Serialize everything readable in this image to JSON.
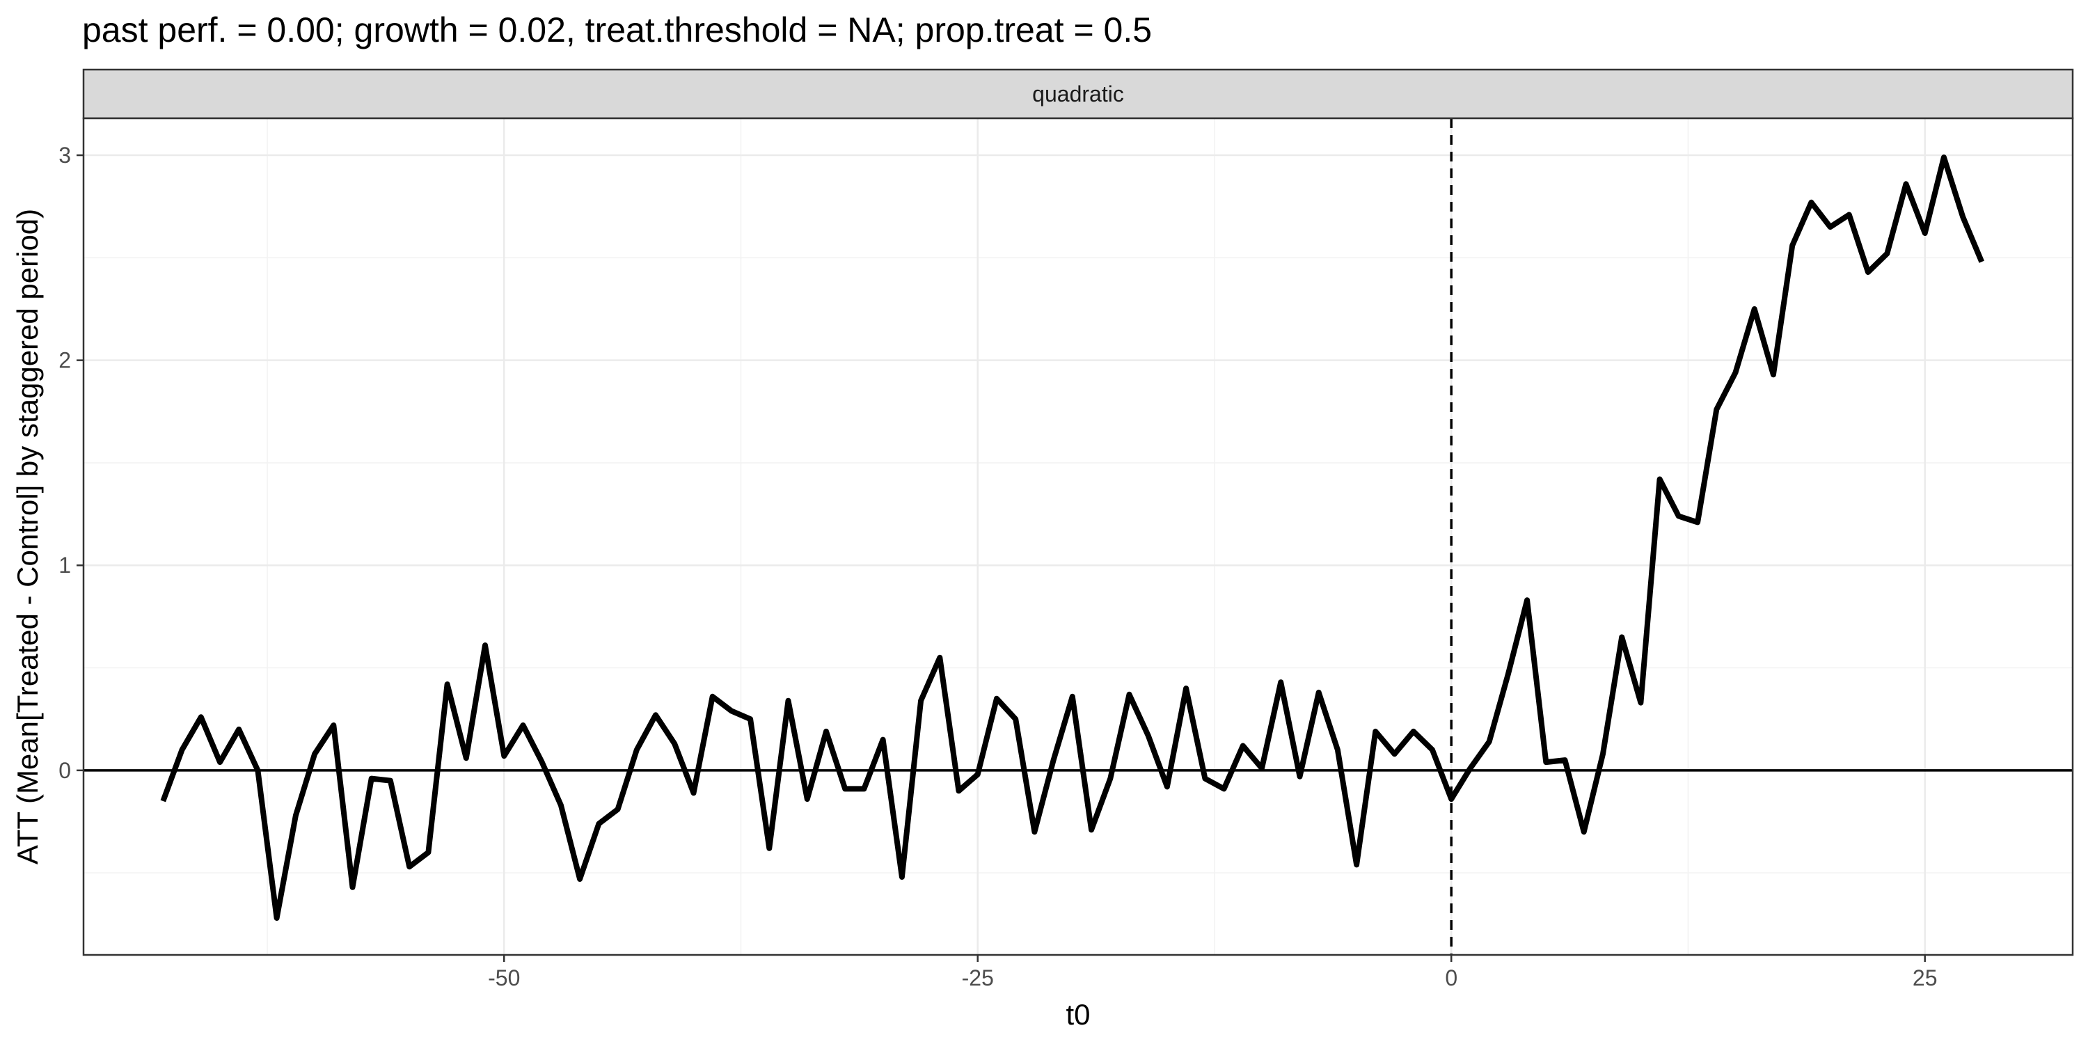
{
  "chart_data": {
    "type": "line",
    "title": "past perf. = 0.00; growth = 0.02,  treat.threshold = NA;  prop.treat = 0.5",
    "facet_label": "quadratic",
    "xlabel": "t0",
    "ylabel": "ATT (Mean[Treated - Control] by staggered period)",
    "xlim": [
      -72.2,
      32.8
    ],
    "ylim": [
      -0.9,
      3.18
    ],
    "x_ticks": [
      -50,
      -25,
      0,
      25
    ],
    "x_tick_labels": [
      "-50",
      "-25",
      "0",
      "25"
    ],
    "y_ticks": [
      0,
      1,
      2,
      3
    ],
    "y_tick_labels": [
      "0",
      "1",
      "2",
      "3"
    ],
    "grid": true,
    "reference_lines": {
      "hline_y": 0,
      "vline_x": 0,
      "vline_style": "dashed"
    },
    "series": [
      {
        "values": [
          {
            "x": -68,
            "y": -0.15
          },
          {
            "x": -67,
            "y": 0.1
          },
          {
            "x": -66,
            "y": 0.26
          },
          {
            "x": -65,
            "y": 0.04
          },
          {
            "x": -64,
            "y": 0.2
          },
          {
            "x": -63,
            "y": 0.0
          },
          {
            "x": -62,
            "y": -0.72
          },
          {
            "x": -61,
            "y": -0.22
          },
          {
            "x": -60,
            "y": 0.08
          },
          {
            "x": -59,
            "y": 0.22
          },
          {
            "x": -58,
            "y": -0.57
          },
          {
            "x": -57,
            "y": -0.04
          },
          {
            "x": -56,
            "y": -0.05
          },
          {
            "x": -55,
            "y": -0.47
          },
          {
            "x": -54,
            "y": -0.4
          },
          {
            "x": -53,
            "y": 0.42
          },
          {
            "x": -52,
            "y": 0.06
          },
          {
            "x": -51,
            "y": 0.61
          },
          {
            "x": -50,
            "y": 0.07
          },
          {
            "x": -49,
            "y": 0.22
          },
          {
            "x": -48,
            "y": 0.04
          },
          {
            "x": -47,
            "y": -0.17
          },
          {
            "x": -46,
            "y": -0.53
          },
          {
            "x": -45,
            "y": -0.26
          },
          {
            "x": -44,
            "y": -0.19
          },
          {
            "x": -43,
            "y": 0.1
          },
          {
            "x": -42,
            "y": 0.27
          },
          {
            "x": -41,
            "y": 0.13
          },
          {
            "x": -40,
            "y": -0.11
          },
          {
            "x": -39,
            "y": 0.36
          },
          {
            "x": -38,
            "y": 0.29
          },
          {
            "x": -37,
            "y": 0.25
          },
          {
            "x": -36,
            "y": -0.38
          },
          {
            "x": -35,
            "y": 0.34
          },
          {
            "x": -34,
            "y": -0.14
          },
          {
            "x": -33,
            "y": 0.19
          },
          {
            "x": -32,
            "y": -0.09
          },
          {
            "x": -31,
            "y": -0.09
          },
          {
            "x": -30,
            "y": 0.15
          },
          {
            "x": -29,
            "y": -0.52
          },
          {
            "x": -28,
            "y": 0.34
          },
          {
            "x": -27,
            "y": 0.55
          },
          {
            "x": -26,
            "y": -0.1
          },
          {
            "x": -25,
            "y": -0.02
          },
          {
            "x": -24,
            "y": 0.35
          },
          {
            "x": -23,
            "y": 0.25
          },
          {
            "x": -22,
            "y": -0.3
          },
          {
            "x": -21,
            "y": 0.05
          },
          {
            "x": -20,
            "y": 0.36
          },
          {
            "x": -19,
            "y": -0.29
          },
          {
            "x": -18,
            "y": -0.04
          },
          {
            "x": -17,
            "y": 0.37
          },
          {
            "x": -16,
            "y": 0.17
          },
          {
            "x": -15,
            "y": -0.08
          },
          {
            "x": -14,
            "y": 0.4
          },
          {
            "x": -13,
            "y": -0.04
          },
          {
            "x": -12,
            "y": -0.09
          },
          {
            "x": -11,
            "y": 0.12
          },
          {
            "x": -10,
            "y": 0.01
          },
          {
            "x": -9,
            "y": 0.43
          },
          {
            "x": -8,
            "y": -0.03
          },
          {
            "x": -7,
            "y": 0.38
          },
          {
            "x": -6,
            "y": 0.1
          },
          {
            "x": -5,
            "y": -0.46
          },
          {
            "x": -4,
            "y": 0.19
          },
          {
            "x": -3,
            "y": 0.08
          },
          {
            "x": -2,
            "y": 0.19
          },
          {
            "x": -1,
            "y": 0.1
          },
          {
            "x": 0,
            "y": -0.14
          },
          {
            "x": 1,
            "y": 0.01
          },
          {
            "x": 2,
            "y": 0.14
          },
          {
            "x": 3,
            "y": 0.47
          },
          {
            "x": 4,
            "y": 0.83
          },
          {
            "x": 5,
            "y": 0.04
          },
          {
            "x": 6,
            "y": 0.05
          },
          {
            "x": 7,
            "y": -0.3
          },
          {
            "x": 8,
            "y": 0.08
          },
          {
            "x": 9,
            "y": 0.65
          },
          {
            "x": 10,
            "y": 0.33
          },
          {
            "x": 11,
            "y": 1.42
          },
          {
            "x": 12,
            "y": 1.24
          },
          {
            "x": 13,
            "y": 1.21
          },
          {
            "x": 14,
            "y": 1.76
          },
          {
            "x": 15,
            "y": 1.94
          },
          {
            "x": 16,
            "y": 2.25
          },
          {
            "x": 17,
            "y": 1.93
          },
          {
            "x": 18,
            "y": 2.56
          },
          {
            "x": 19,
            "y": 2.77
          },
          {
            "x": 20,
            "y": 2.65
          },
          {
            "x": 21,
            "y": 2.71
          },
          {
            "x": 22,
            "y": 2.43
          },
          {
            "x": 23,
            "y": 2.52
          },
          {
            "x": 24,
            "y": 2.86
          },
          {
            "x": 25,
            "y": 2.62
          },
          {
            "x": 26,
            "y": 2.99
          },
          {
            "x": 27,
            "y": 2.7
          },
          {
            "x": 28,
            "y": 2.48
          }
        ]
      }
    ]
  }
}
